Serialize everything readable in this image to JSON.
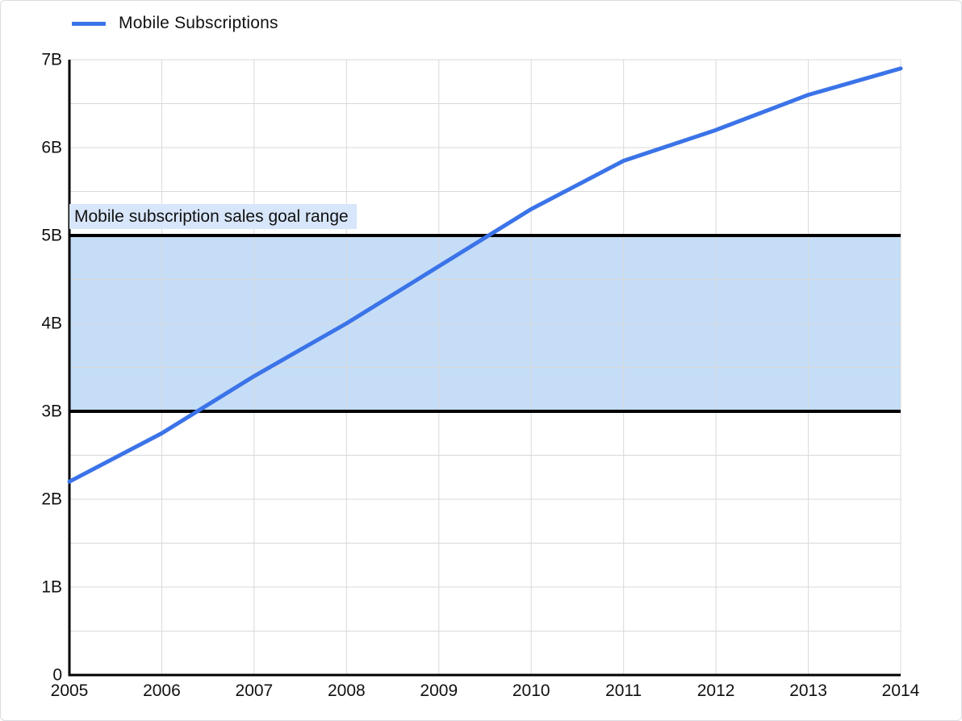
{
  "chart_data": {
    "type": "line",
    "title": "",
    "xlabel": "",
    "ylabel": "",
    "x": [
      2005,
      2006,
      2007,
      2008,
      2009,
      2010,
      2011,
      2012,
      2013,
      2014
    ],
    "x_tick_labels": [
      "2005",
      "2006",
      "2007",
      "2008",
      "2009",
      "2010",
      "2011",
      "2012",
      "2013",
      "2014"
    ],
    "series": [
      {
        "name": "Mobile Subscriptions",
        "color": "#3b73e8",
        "values": [
          2.2,
          2.75,
          3.4,
          4.0,
          4.65,
          5.3,
          5.85,
          6.2,
          6.6,
          6.9
        ]
      }
    ],
    "ylim": [
      0,
      7
    ],
    "y_ticks": [
      {
        "value": 0,
        "label": "0"
      },
      {
        "value": 1,
        "label": "1B"
      },
      {
        "value": 2,
        "label": "2B"
      },
      {
        "value": 3,
        "label": "3B"
      },
      {
        "value": 4,
        "label": "4B"
      },
      {
        "value": 5,
        "label": "5B"
      },
      {
        "value": 6,
        "label": "6B"
      },
      {
        "value": 7,
        "label": "7B"
      }
    ],
    "grid": {
      "horizontal_step": 0.5,
      "vertical": "per-year",
      "color": "#d9d9d9"
    },
    "legend": {
      "position": "top-left",
      "entries": [
        {
          "label": "Mobile Subscriptions",
          "color": "#3b73e8"
        }
      ]
    },
    "band": {
      "from": 3,
      "to": 5,
      "fill": "#c5ddf7",
      "edge_color": "#000000",
      "edge_width": 4,
      "label": "Mobile subscription sales goal range",
      "label_bg": "#d8e6fb"
    },
    "axis_color": "#000000",
    "line_width": 5
  }
}
